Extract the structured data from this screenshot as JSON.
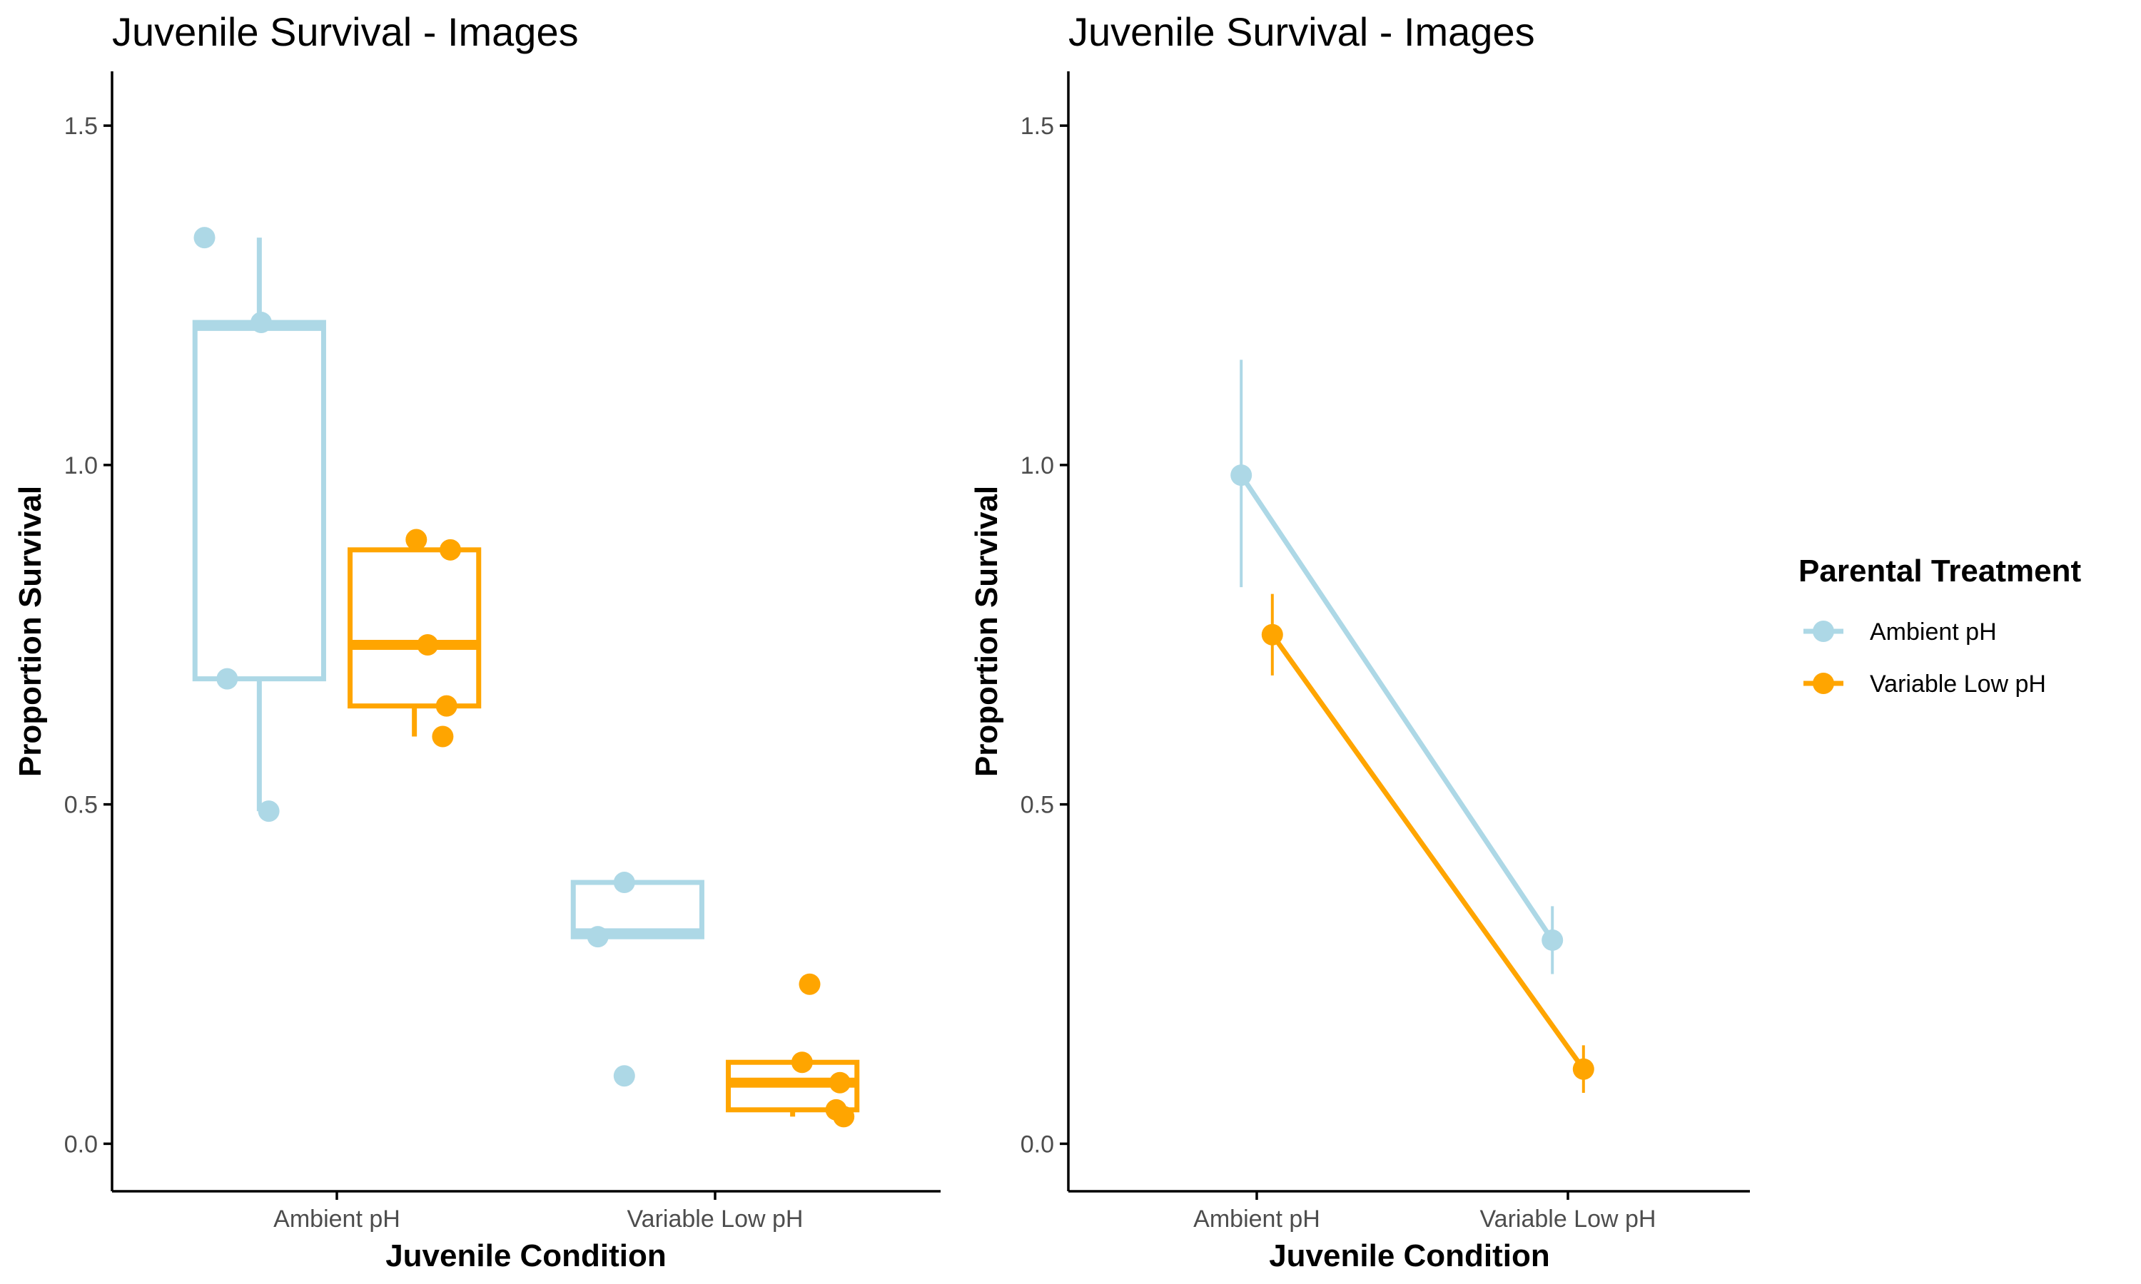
{
  "colors": {
    "Ambient pH": "#add8e6",
    "Variable Low pH": "#ffa500",
    "axis": "#000000",
    "tick_text": "#4d4d4d"
  },
  "legend": {
    "title": "Parental Treatment",
    "entries": [
      "Ambient pH",
      "Variable Low pH"
    ],
    "position": "right"
  },
  "chart_data": [
    {
      "type": "box",
      "title": "Juvenile Survival - Images",
      "xlabel": "Juvenile Condition",
      "ylabel": "Proportion Survival",
      "ylim": [
        -0.07,
        1.58
      ],
      "yticks": [
        "0.0",
        "0.5",
        "1.0",
        "1.5"
      ],
      "categories": [
        "Ambient pH",
        "Variable Low pH"
      ],
      "grid": false,
      "series": [
        {
          "name": "Ambient pH",
          "boxes": [
            {
              "category": "Ambient pH",
              "q1": 0.685,
              "median": 1.205,
              "q3": 1.21,
              "whisker_low": 0.49,
              "whisker_high": 1.335
            },
            {
              "category": "Variable Low pH",
              "q1": 0.305,
              "median": 0.31,
              "q3": 0.385,
              "whisker_low": 0.305,
              "whisker_high": 0.385
            }
          ],
          "points": [
            {
              "category": "Ambient pH",
              "y": 1.335,
              "jitter": -0.35
            },
            {
              "category": "Ambient pH",
              "y": 1.21,
              "jitter": -0.2
            },
            {
              "category": "Ambient pH",
              "y": 0.685,
              "jitter": -0.29
            },
            {
              "category": "Ambient pH",
              "y": 0.49,
              "jitter": -0.18
            },
            {
              "category": "Variable Low pH",
              "y": 0.385,
              "jitter": -0.24
            },
            {
              "category": "Variable Low pH",
              "y": 0.305,
              "jitter": -0.31
            },
            {
              "category": "Variable Low pH",
              "y": 0.1,
              "jitter": -0.24
            }
          ]
        },
        {
          "name": "Variable Low pH",
          "boxes": [
            {
              "category": "Ambient pH",
              "q1": 0.645,
              "median": 0.735,
              "q3": 0.875,
              "whisker_low": 0.6,
              "whisker_high": 0.89
            },
            {
              "category": "Variable Low pH",
              "q1": 0.05,
              "median": 0.09,
              "q3": 0.12,
              "whisker_low": 0.04,
              "whisker_high": 0.12
            }
          ],
          "points": [
            {
              "category": "Ambient pH",
              "y": 0.89,
              "jitter": 0.21
            },
            {
              "category": "Ambient pH",
              "y": 0.875,
              "jitter": 0.3
            },
            {
              "category": "Ambient pH",
              "y": 0.735,
              "jitter": 0.24
            },
            {
              "category": "Ambient pH",
              "y": 0.645,
              "jitter": 0.29
            },
            {
              "category": "Ambient pH",
              "y": 0.6,
              "jitter": 0.28
            },
            {
              "category": "Variable Low pH",
              "y": 0.235,
              "jitter": 0.25
            },
            {
              "category": "Variable Low pH",
              "y": 0.12,
              "jitter": 0.23
            },
            {
              "category": "Variable Low pH",
              "y": 0.09,
              "jitter": 0.33
            },
            {
              "category": "Variable Low pH",
              "y": 0.05,
              "jitter": 0.32
            },
            {
              "category": "Variable Low pH",
              "y": 0.04,
              "jitter": 0.34
            }
          ]
        }
      ]
    },
    {
      "type": "line",
      "title": "Juvenile Survival - Images",
      "xlabel": "Juvenile Condition",
      "ylabel": "Proportion Survival",
      "ylim": [
        -0.07,
        1.58
      ],
      "yticks": [
        "0.0",
        "0.5",
        "1.0",
        "1.5"
      ],
      "categories": [
        "Ambient pH",
        "Variable Low pH"
      ],
      "grid": false,
      "series": [
        {
          "name": "Ambient pH",
          "values": [
            0.985,
            0.3
          ],
          "lower": [
            0.82,
            0.25
          ],
          "upper": [
            1.155,
            0.35
          ],
          "dodge": -0.05
        },
        {
          "name": "Variable Low pH",
          "values": [
            0.75,
            0.11
          ],
          "lower": [
            0.69,
            0.075
          ],
          "upper": [
            0.81,
            0.145
          ],
          "dodge": 0.05
        }
      ]
    }
  ]
}
